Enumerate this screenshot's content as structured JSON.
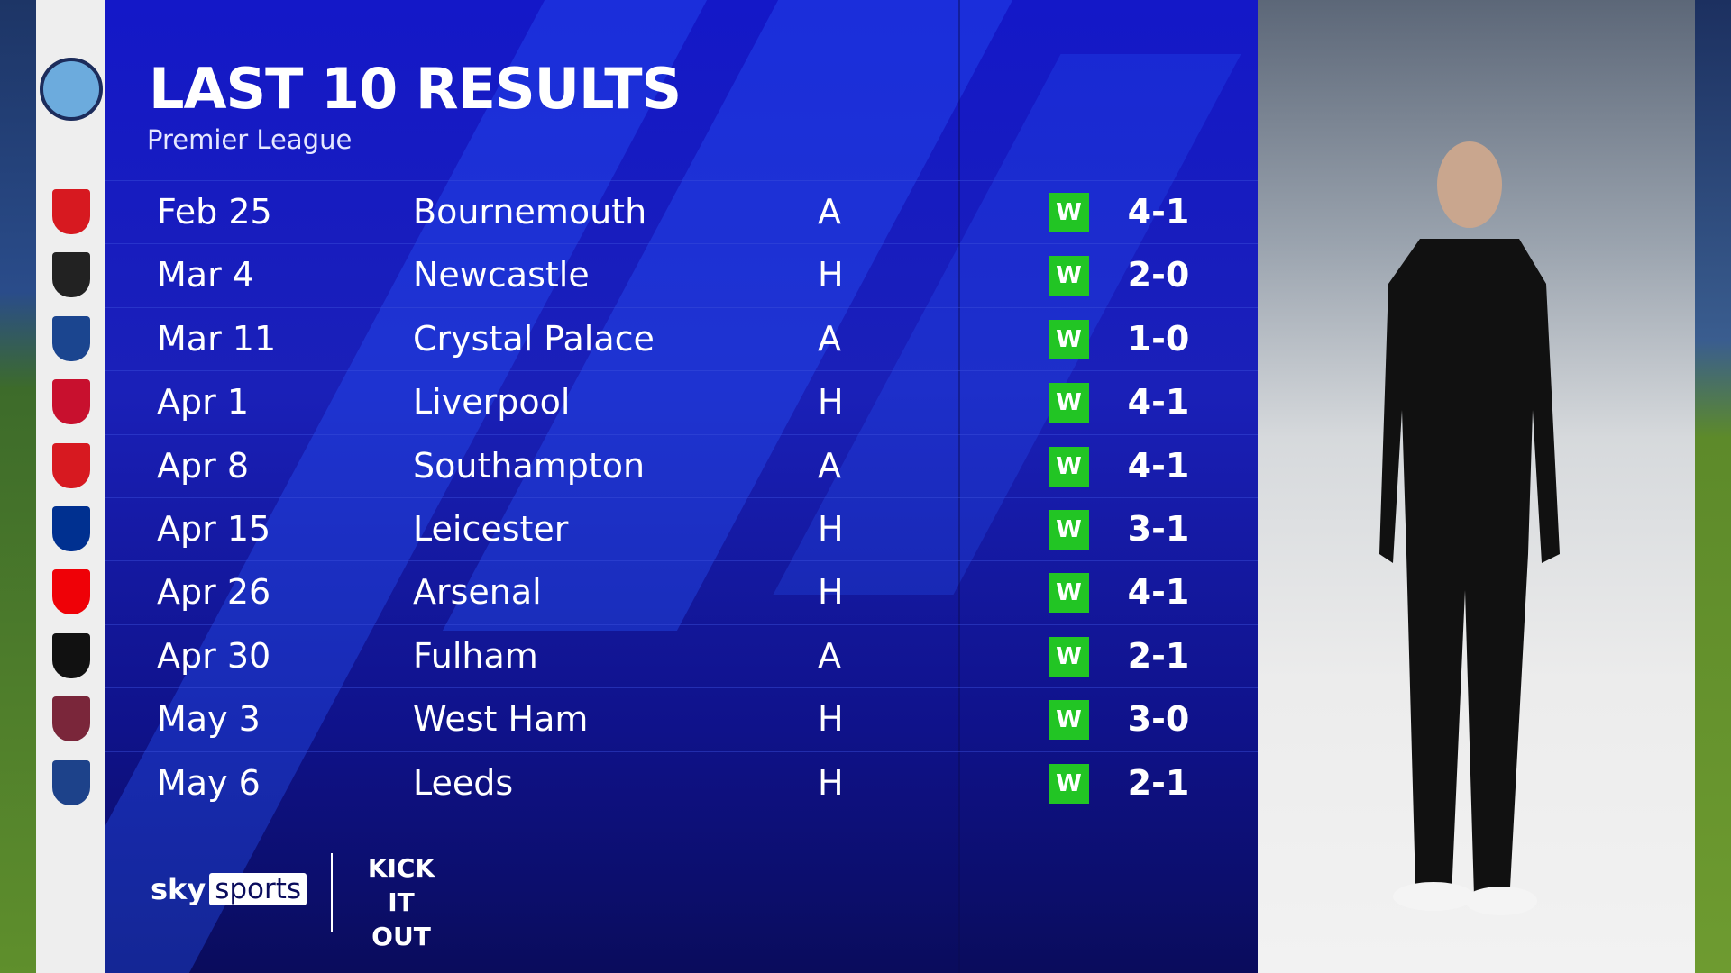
{
  "header": {
    "title": "LAST 10 RESULTS",
    "subtitle": "Premier League"
  },
  "team_crest": "manchester-city-crest",
  "results": [
    {
      "date": "Feb 25",
      "opponent": "Bournemouth",
      "venue": "A",
      "result": "W",
      "score": "4-1",
      "crest_color": "#d71920"
    },
    {
      "date": "Mar 4",
      "opponent": "Newcastle",
      "venue": "H",
      "result": "W",
      "score": "2-0",
      "crest_color": "#222222"
    },
    {
      "date": "Mar 11",
      "opponent": "Crystal Palace",
      "venue": "A",
      "result": "W",
      "score": "1-0",
      "crest_color": "#1b458f"
    },
    {
      "date": "Apr 1",
      "opponent": "Liverpool",
      "venue": "H",
      "result": "W",
      "score": "4-1",
      "crest_color": "#c8102e"
    },
    {
      "date": "Apr 8",
      "opponent": "Southampton",
      "venue": "A",
      "result": "W",
      "score": "4-1",
      "crest_color": "#d71920"
    },
    {
      "date": "Apr 15",
      "opponent": "Leicester",
      "venue": "H",
      "result": "W",
      "score": "3-1",
      "crest_color": "#003090"
    },
    {
      "date": "Apr 26",
      "opponent": "Arsenal",
      "venue": "H",
      "result": "W",
      "score": "4-1",
      "crest_color": "#ef0107"
    },
    {
      "date": "Apr 30",
      "opponent": "Fulham",
      "venue": "A",
      "result": "W",
      "score": "2-1",
      "crest_color": "#111111"
    },
    {
      "date": "May 3",
      "opponent": "West Ham",
      "venue": "H",
      "result": "W",
      "score": "3-0",
      "crest_color": "#7a263a"
    },
    {
      "date": "May 6",
      "opponent": "Leeds",
      "venue": "H",
      "result": "W",
      "score": "2-1",
      "crest_color": "#1d428a"
    }
  ],
  "colors": {
    "win_badge": "#22c524",
    "panel": "#1418c8"
  },
  "footer": {
    "sky": "sky",
    "sports": "sports",
    "kick_it_out": "KICK IT OUT"
  }
}
